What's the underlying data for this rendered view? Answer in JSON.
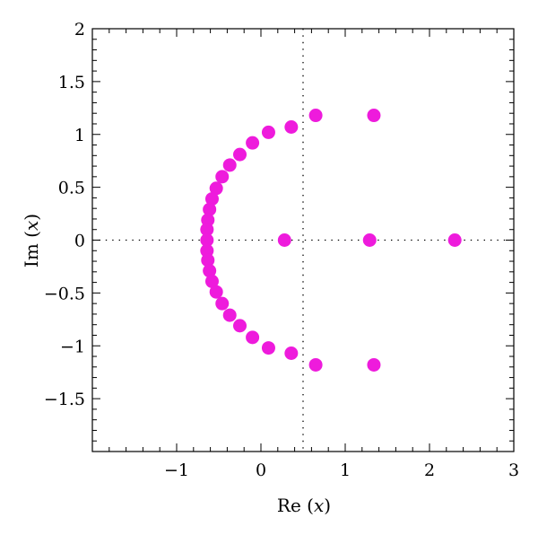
{
  "chart_data": {
    "type": "scatter",
    "title": "",
    "xlabel_main": "Re",
    "xlabel_var": "x",
    "ylabel_main": "Im",
    "ylabel_var": "x",
    "xlim": [
      -2,
      3
    ],
    "ylim": [
      -2,
      2
    ],
    "x_ticks": [
      {
        "value": -1,
        "label": "−1"
      },
      {
        "value": 0,
        "label": "0"
      },
      {
        "value": 1,
        "label": "1"
      },
      {
        "value": 2,
        "label": "2"
      },
      {
        "value": 3,
        "label": "3"
      }
    ],
    "y_ticks": [
      {
        "value": 2,
        "label": "2"
      },
      {
        "value": 1.5,
        "label": "1.5"
      },
      {
        "value": 1,
        "label": "1"
      },
      {
        "value": 0.5,
        "label": "0.5"
      },
      {
        "value": 0,
        "label": "0"
      },
      {
        "value": -0.5,
        "label": "−0.5"
      },
      {
        "value": -1,
        "label": "−1"
      },
      {
        "value": -1.5,
        "label": "−1.5"
      }
    ],
    "reference_lines": {
      "x": 0.5,
      "y": 0
    },
    "marker_color": "#ee1bdc",
    "points": [
      {
        "x": 0.65,
        "y": 1.18
      },
      {
        "x": 0.36,
        "y": 1.07
      },
      {
        "x": 0.09,
        "y": 1.02
      },
      {
        "x": -0.1,
        "y": 0.92
      },
      {
        "x": -0.25,
        "y": 0.81
      },
      {
        "x": -0.37,
        "y": 0.71
      },
      {
        "x": -0.46,
        "y": 0.6
      },
      {
        "x": -0.53,
        "y": 0.49
      },
      {
        "x": -0.58,
        "y": 0.39
      },
      {
        "x": -0.61,
        "y": 0.29
      },
      {
        "x": -0.63,
        "y": 0.19
      },
      {
        "x": -0.64,
        "y": 0.1
      },
      {
        "x": -0.64,
        "y": 0.0
      },
      {
        "x": -0.64,
        "y": -0.1
      },
      {
        "x": -0.63,
        "y": -0.19
      },
      {
        "x": -0.61,
        "y": -0.29
      },
      {
        "x": -0.58,
        "y": -0.39
      },
      {
        "x": -0.53,
        "y": -0.49
      },
      {
        "x": -0.46,
        "y": -0.6
      },
      {
        "x": -0.37,
        "y": -0.71
      },
      {
        "x": -0.25,
        "y": -0.81
      },
      {
        "x": -0.1,
        "y": -0.92
      },
      {
        "x": 0.09,
        "y": -1.02
      },
      {
        "x": 0.36,
        "y": -1.07
      },
      {
        "x": 0.65,
        "y": -1.18
      },
      {
        "x": 1.34,
        "y": 1.18
      },
      {
        "x": 1.34,
        "y": -1.18
      },
      {
        "x": 0.28,
        "y": 0.0
      },
      {
        "x": 1.29,
        "y": 0.0
      },
      {
        "x": 2.3,
        "y": 0.0
      }
    ]
  }
}
